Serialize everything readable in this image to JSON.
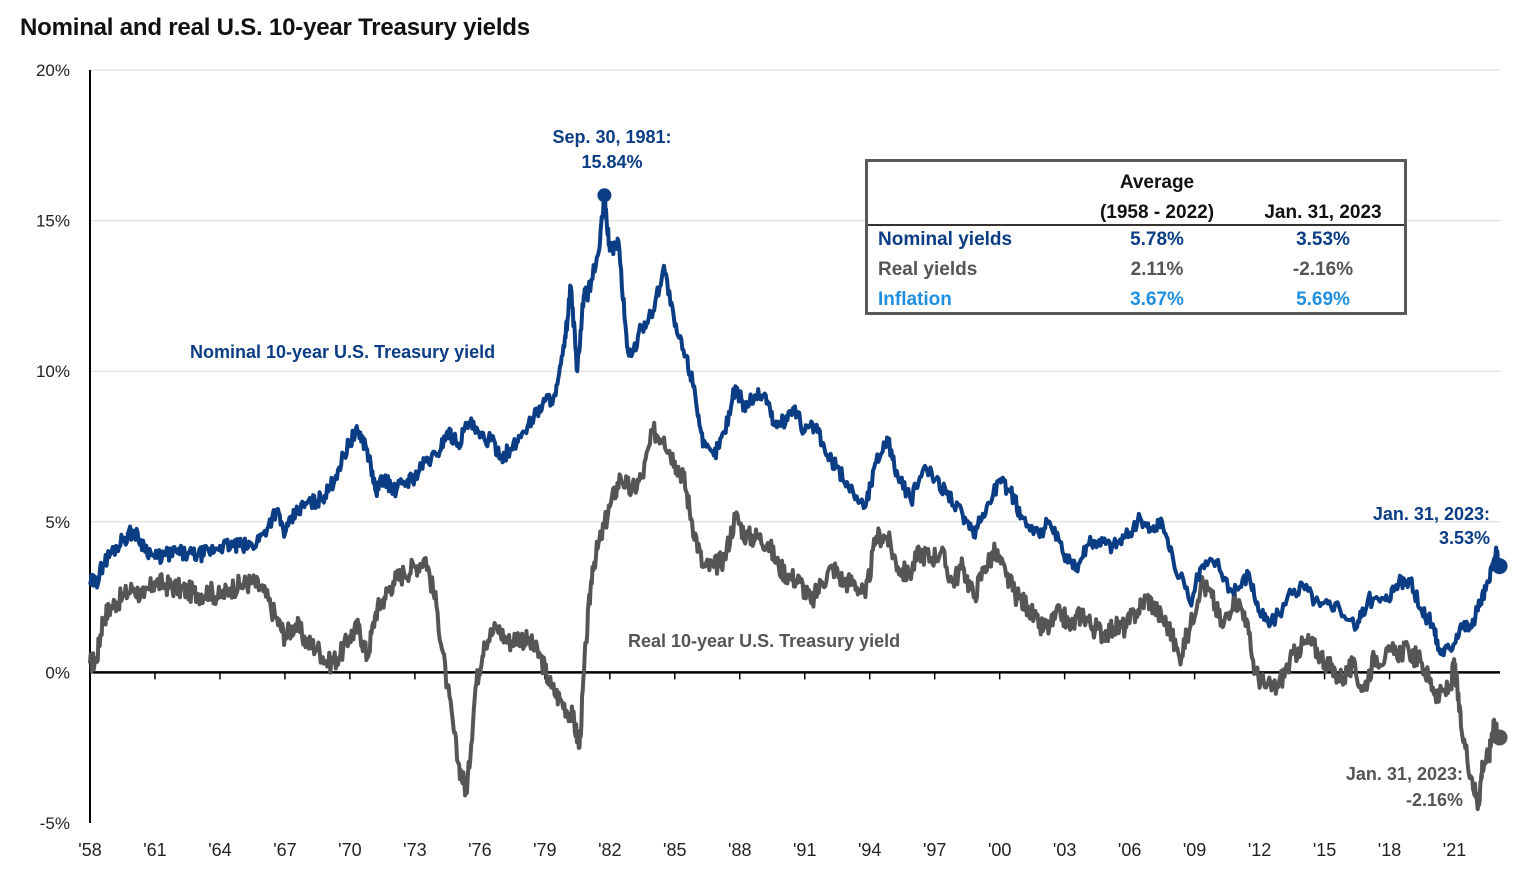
{
  "title": "Nominal and real U.S. 10-year Treasury yields",
  "colors": {
    "nominal": "#0b3d85",
    "real": "#555555",
    "inflation": "#1f8fe0",
    "axis": "#000000",
    "grid": "#d9d9d9"
  },
  "table": {
    "header_avg_line1": "Average",
    "header_avg_line2": "(1958 - 2022)",
    "header_current": "Jan. 31, 2023",
    "rows": [
      {
        "label": "Nominal yields",
        "avg": "5.78%",
        "current": "3.53%"
      },
      {
        "label": "Real yields",
        "avg": "2.11%",
        "current": "-2.16%"
      },
      {
        "label": "Inflation",
        "avg": "3.67%",
        "current": "5.69%"
      }
    ]
  },
  "annotations": {
    "peak_line1": "Sep. 30, 1981:",
    "peak_line2": "15.84%",
    "nominal_series_label": "Nominal  10-year U.S. Treasury yield",
    "real_series_label": "Real 10-year U.S. Treasury yield",
    "nominal_end_line1": "Jan. 31, 2023:",
    "nominal_end_line2": "3.53%",
    "real_end_line1": "Jan. 31, 2023:",
    "real_end_line2": "-2.16%"
  },
  "chart_data": {
    "type": "line",
    "title": "Nominal and real U.S. 10-year Treasury yields",
    "xlabel": "",
    "ylabel": "",
    "xlim": [
      1958.0,
      2023.1
    ],
    "ylim": [
      -5,
      20
    ],
    "y_ticks": [
      {
        "value": 20,
        "label": "20%"
      },
      {
        "value": 15,
        "label": "15%"
      },
      {
        "value": 10,
        "label": "10%"
      },
      {
        "value": 5,
        "label": "5%"
      },
      {
        "value": 0,
        "label": "0%"
      },
      {
        "value": -5,
        "label": "-5%"
      }
    ],
    "x_ticks": [
      {
        "value": 1958,
        "label": "'58"
      },
      {
        "value": 1961,
        "label": "'61"
      },
      {
        "value": 1964,
        "label": "'64"
      },
      {
        "value": 1967,
        "label": "'67"
      },
      {
        "value": 1970,
        "label": "'70"
      },
      {
        "value": 1973,
        "label": "'73"
      },
      {
        "value": 1976,
        "label": "'76"
      },
      {
        "value": 1979,
        "label": "'79"
      },
      {
        "value": 1982,
        "label": "'82"
      },
      {
        "value": 1985,
        "label": "'85"
      },
      {
        "value": 1988,
        "label": "'88"
      },
      {
        "value": 1991,
        "label": "'91"
      },
      {
        "value": 1994,
        "label": "'94"
      },
      {
        "value": 1997,
        "label": "'97"
      },
      {
        "value": 2000,
        "label": "'00"
      },
      {
        "value": 2003,
        "label": "'03"
      },
      {
        "value": 2006,
        "label": "'06"
      },
      {
        "value": 2009,
        "label": "'09"
      },
      {
        "value": 2012,
        "label": "'12"
      },
      {
        "value": 2015,
        "label": "'15"
      },
      {
        "value": 2018,
        "label": "'18"
      },
      {
        "value": 2021,
        "label": "'21"
      }
    ],
    "grid": true,
    "series": [
      {
        "name": "Nominal 10-year U.S. Treasury yield",
        "points": [
          [
            1958.0,
            3.0
          ],
          [
            1958.3,
            3.0
          ],
          [
            1958.6,
            3.6
          ],
          [
            1959.0,
            4.0
          ],
          [
            1959.5,
            4.4
          ],
          [
            1960.0,
            4.7
          ],
          [
            1960.5,
            4.2
          ],
          [
            1961.0,
            3.8
          ],
          [
            1961.5,
            3.9
          ],
          [
            1962.0,
            4.0
          ],
          [
            1962.5,
            3.9
          ],
          [
            1963.0,
            3.9
          ],
          [
            1963.5,
            4.0
          ],
          [
            1964.0,
            4.2
          ],
          [
            1964.5,
            4.2
          ],
          [
            1965.0,
            4.2
          ],
          [
            1965.5,
            4.2
          ],
          [
            1966.0,
            4.6
          ],
          [
            1966.6,
            5.4
          ],
          [
            1967.0,
            4.6
          ],
          [
            1967.5,
            5.3
          ],
          [
            1968.0,
            5.6
          ],
          [
            1968.5,
            5.7
          ],
          [
            1969.0,
            6.0
          ],
          [
            1969.5,
            6.8
          ],
          [
            1970.0,
            7.7
          ],
          [
            1970.4,
            8.0
          ],
          [
            1970.8,
            7.4
          ],
          [
            1971.2,
            6.0
          ],
          [
            1971.6,
            6.5
          ],
          [
            1972.0,
            6.0
          ],
          [
            1972.5,
            6.3
          ],
          [
            1973.0,
            6.5
          ],
          [
            1973.5,
            7.0
          ],
          [
            1974.0,
            7.2
          ],
          [
            1974.5,
            8.0
          ],
          [
            1975.0,
            7.6
          ],
          [
            1975.5,
            8.3
          ],
          [
            1976.0,
            7.8
          ],
          [
            1976.5,
            7.7
          ],
          [
            1977.0,
            7.2
          ],
          [
            1977.5,
            7.4
          ],
          [
            1978.0,
            8.0
          ],
          [
            1978.5,
            8.5
          ],
          [
            1979.0,
            9.0
          ],
          [
            1979.5,
            9.2
          ],
          [
            1979.9,
            10.8
          ],
          [
            1980.2,
            12.8
          ],
          [
            1980.5,
            10.0
          ],
          [
            1980.8,
            12.5
          ],
          [
            1981.0,
            12.6
          ],
          [
            1981.5,
            14.0
          ],
          [
            1981.75,
            15.84
          ],
          [
            1982.0,
            14.0
          ],
          [
            1982.4,
            14.3
          ],
          [
            1982.8,
            10.8
          ],
          [
            1983.0,
            10.5
          ],
          [
            1983.5,
            11.5
          ],
          [
            1984.0,
            12.0
          ],
          [
            1984.5,
            13.5
          ],
          [
            1985.0,
            11.5
          ],
          [
            1985.5,
            10.5
          ],
          [
            1985.9,
            9.5
          ],
          [
            1986.3,
            7.5
          ],
          [
            1986.8,
            7.2
          ],
          [
            1987.3,
            8.0
          ],
          [
            1987.8,
            9.5
          ],
          [
            1988.2,
            8.8
          ],
          [
            1988.7,
            9.2
          ],
          [
            1989.2,
            9.2
          ],
          [
            1989.6,
            8.2
          ],
          [
            1990.0,
            8.3
          ],
          [
            1990.5,
            8.8
          ],
          [
            1991.0,
            8.0
          ],
          [
            1991.5,
            8.2
          ],
          [
            1992.0,
            7.2
          ],
          [
            1992.5,
            6.8
          ],
          [
            1993.0,
            6.2
          ],
          [
            1993.8,
            5.5
          ],
          [
            1994.3,
            7.0
          ],
          [
            1994.8,
            7.8
          ],
          [
            1995.3,
            6.5
          ],
          [
            1995.9,
            5.7
          ],
          [
            1996.5,
            6.8
          ],
          [
            1997.0,
            6.4
          ],
          [
            1997.6,
            6.0
          ],
          [
            1998.3,
            5.2
          ],
          [
            1998.8,
            4.5
          ],
          [
            1999.4,
            5.5
          ],
          [
            2000.0,
            6.4
          ],
          [
            2000.5,
            6.0
          ],
          [
            2001.0,
            5.2
          ],
          [
            2001.8,
            4.6
          ],
          [
            2002.3,
            5.0
          ],
          [
            2002.9,
            4.0
          ],
          [
            2003.5,
            3.4
          ],
          [
            2004.0,
            4.2
          ],
          [
            2004.6,
            4.4
          ],
          [
            2005.2,
            4.2
          ],
          [
            2005.8,
            4.5
          ],
          [
            2006.5,
            5.1
          ],
          [
            2007.0,
            4.7
          ],
          [
            2007.5,
            5.0
          ],
          [
            2008.0,
            3.8
          ],
          [
            2008.8,
            2.3
          ],
          [
            2009.3,
            3.5
          ],
          [
            2010.0,
            3.7
          ],
          [
            2010.8,
            2.6
          ],
          [
            2011.5,
            3.3
          ],
          [
            2012.0,
            2.0
          ],
          [
            2012.5,
            1.6
          ],
          [
            2013.5,
            2.6
          ],
          [
            2014.0,
            2.9
          ],
          [
            2014.8,
            2.2
          ],
          [
            2015.5,
            2.3
          ],
          [
            2016.5,
            1.5
          ],
          [
            2017.0,
            2.4
          ],
          [
            2017.8,
            2.4
          ],
          [
            2018.3,
            2.9
          ],
          [
            2018.9,
            3.1
          ],
          [
            2019.5,
            2.0
          ],
          [
            2020.0,
            1.6
          ],
          [
            2020.3,
            0.7
          ],
          [
            2020.8,
            0.8
          ],
          [
            2021.3,
            1.6
          ],
          [
            2021.8,
            1.5
          ],
          [
            2022.2,
            2.4
          ],
          [
            2022.6,
            3.0
          ],
          [
            2022.9,
            4.0
          ],
          [
            2023.08,
            3.53
          ]
        ]
      },
      {
        "name": "Real 10-year U.S. Treasury yield",
        "points": [
          [
            1958.0,
            0.3
          ],
          [
            1958.3,
            0.4
          ],
          [
            1958.6,
            1.8
          ],
          [
            1959.0,
            2.2
          ],
          [
            1959.5,
            2.5
          ],
          [
            1960.0,
            2.8
          ],
          [
            1960.5,
            2.5
          ],
          [
            1961.0,
            3.0
          ],
          [
            1961.5,
            2.9
          ],
          [
            1962.0,
            2.8
          ],
          [
            1962.5,
            2.7
          ],
          [
            1963.0,
            2.6
          ],
          [
            1963.5,
            2.7
          ],
          [
            1964.0,
            2.5
          ],
          [
            1964.5,
            2.8
          ],
          [
            1965.0,
            2.9
          ],
          [
            1965.5,
            3.0
          ],
          [
            1966.0,
            2.7
          ],
          [
            1966.6,
            1.8
          ],
          [
            1967.0,
            1.2
          ],
          [
            1967.5,
            1.6
          ],
          [
            1968.0,
            1.0
          ],
          [
            1968.5,
            0.8
          ],
          [
            1969.0,
            0.3
          ],
          [
            1969.5,
            0.5
          ],
          [
            1970.0,
            1.2
          ],
          [
            1970.4,
            1.5
          ],
          [
            1970.8,
            0.5
          ],
          [
            1971.2,
            2.0
          ],
          [
            1971.6,
            2.5
          ],
          [
            1972.0,
            3.0
          ],
          [
            1972.5,
            3.3
          ],
          [
            1973.0,
            3.5
          ],
          [
            1973.5,
            3.8
          ],
          [
            1974.0,
            2.2
          ],
          [
            1974.5,
            -0.5
          ],
          [
            1975.0,
            -3.0
          ],
          [
            1975.4,
            -4.0
          ],
          [
            1975.8,
            -0.5
          ],
          [
            1976.2,
            1.0
          ],
          [
            1976.8,
            1.5
          ],
          [
            1977.3,
            1.0
          ],
          [
            1977.8,
            1.2
          ],
          [
            1978.3,
            1.0
          ],
          [
            1978.8,
            0.5
          ],
          [
            1979.3,
            -0.5
          ],
          [
            1979.8,
            -1.0
          ],
          [
            1980.3,
            -1.5
          ],
          [
            1980.6,
            -2.5
          ],
          [
            1980.9,
            1.0
          ],
          [
            1981.2,
            3.5
          ],
          [
            1981.6,
            4.5
          ],
          [
            1982.0,
            5.5
          ],
          [
            1982.5,
            6.5
          ],
          [
            1983.0,
            6.0
          ],
          [
            1983.5,
            6.5
          ],
          [
            1984.0,
            8.0
          ],
          [
            1984.5,
            7.8
          ],
          [
            1985.0,
            7.0
          ],
          [
            1985.4,
            6.5
          ],
          [
            1985.8,
            5.0
          ],
          [
            1986.3,
            3.5
          ],
          [
            1986.8,
            3.5
          ],
          [
            1987.3,
            3.8
          ],
          [
            1987.8,
            5.2
          ],
          [
            1988.3,
            4.5
          ],
          [
            1988.8,
            4.5
          ],
          [
            1989.3,
            4.3
          ],
          [
            1989.8,
            3.5
          ],
          [
            1990.3,
            3.2
          ],
          [
            1990.8,
            3.0
          ],
          [
            1991.3,
            2.3
          ],
          [
            1991.8,
            3.0
          ],
          [
            1992.3,
            3.5
          ],
          [
            1992.8,
            3.0
          ],
          [
            1993.3,
            3.0
          ],
          [
            1993.8,
            2.5
          ],
          [
            1994.3,
            4.5
          ],
          [
            1994.8,
            4.5
          ],
          [
            1995.3,
            3.5
          ],
          [
            1995.8,
            3.2
          ],
          [
            1996.3,
            4.0
          ],
          [
            1996.8,
            3.8
          ],
          [
            1997.3,
            4.0
          ],
          [
            1997.8,
            3.0
          ],
          [
            1998.3,
            3.5
          ],
          [
            1998.8,
            2.5
          ],
          [
            1999.3,
            3.5
          ],
          [
            1999.8,
            4.0
          ],
          [
            2000.3,
            3.2
          ],
          [
            2000.8,
            2.5
          ],
          [
            2001.3,
            2.2
          ],
          [
            2001.8,
            1.5
          ],
          [
            2002.3,
            1.5
          ],
          [
            2002.8,
            2.0
          ],
          [
            2003.3,
            1.5
          ],
          [
            2003.8,
            2.0
          ],
          [
            2004.3,
            1.5
          ],
          [
            2004.8,
            1.3
          ],
          [
            2005.3,
            1.5
          ],
          [
            2005.8,
            1.5
          ],
          [
            2006.3,
            2.0
          ],
          [
            2006.8,
            2.5
          ],
          [
            2007.3,
            2.0
          ],
          [
            2007.8,
            1.5
          ],
          [
            2008.3,
            0.5
          ],
          [
            2008.8,
            1.5
          ],
          [
            2009.3,
            3.0
          ],
          [
            2009.8,
            2.5
          ],
          [
            2010.3,
            1.5
          ],
          [
            2010.8,
            2.5
          ],
          [
            2011.3,
            2.0
          ],
          [
            2011.8,
            0.0
          ],
          [
            2012.3,
            -0.5
          ],
          [
            2012.8,
            -0.5
          ],
          [
            2013.3,
            0.2
          ],
          [
            2013.8,
            0.8
          ],
          [
            2014.3,
            1.0
          ],
          [
            2014.8,
            0.6
          ],
          [
            2015.3,
            0.1
          ],
          [
            2015.8,
            -0.2
          ],
          [
            2016.3,
            0.2
          ],
          [
            2016.8,
            -0.6
          ],
          [
            2017.3,
            0.5
          ],
          [
            2017.8,
            0.5
          ],
          [
            2018.3,
            0.7
          ],
          [
            2018.9,
            0.7
          ],
          [
            2019.5,
            0.3
          ],
          [
            2020.0,
            -0.5
          ],
          [
            2020.3,
            -0.8
          ],
          [
            2020.8,
            -0.5
          ],
          [
            2021.0,
            0.3
          ],
          [
            2021.3,
            -1.8
          ],
          [
            2021.8,
            -3.5
          ],
          [
            2022.1,
            -4.4
          ],
          [
            2022.3,
            -3.0
          ],
          [
            2022.6,
            -2.8
          ],
          [
            2022.8,
            -1.6
          ],
          [
            2023.08,
            -2.16
          ]
        ]
      }
    ]
  }
}
